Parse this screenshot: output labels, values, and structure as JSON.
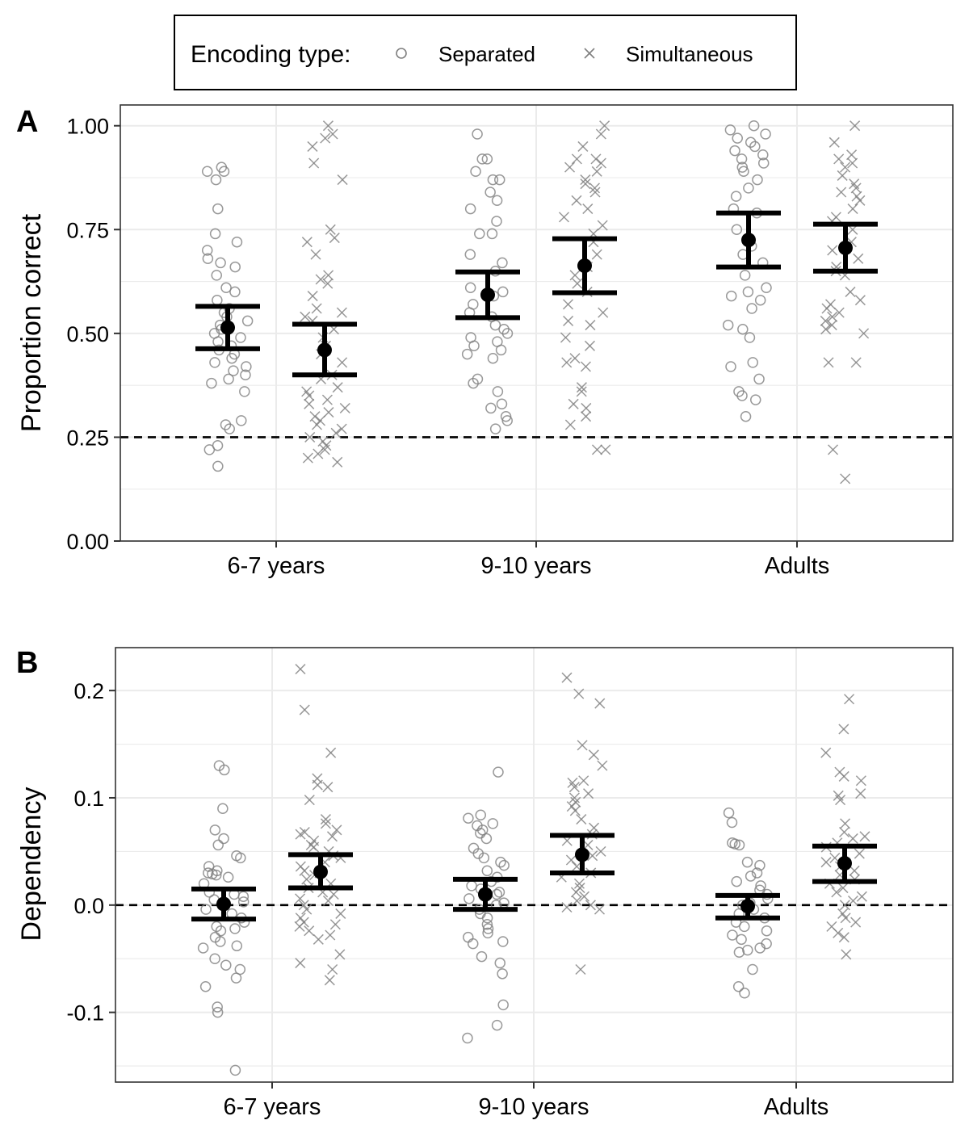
{
  "legend": {
    "title": "Encoding type:",
    "items": [
      {
        "label": "Separated",
        "shape": "circle-icon"
      },
      {
        "label": "Simultaneous",
        "shape": "cross-icon"
      }
    ]
  },
  "colors": {
    "point": "#7f7f7f",
    "summary": "#000000",
    "grid": "#ebebeb",
    "panel_border": "#333333",
    "reference_line": "#000000"
  },
  "chart_data": [
    {
      "type": "scatter",
      "panel_label": "A",
      "title": "",
      "xlabel": "",
      "ylabel": "Proportion correct",
      "categories": [
        "6-7 years",
        "9-10 years",
        "Adults"
      ],
      "ylim": [
        0,
        1.05
      ],
      "yticks": [
        0,
        0.25,
        0.5,
        0.75,
        1.0
      ],
      "ytick_labels": [
        "0.00",
        "0.25",
        "0.50",
        "0.75",
        "1.00"
      ],
      "reference_line": 0.25,
      "grid": true,
      "series": [
        {
          "name": "Separated",
          "marker": "circle",
          "points": [
            [
              0.89,
              0.89,
              0.9,
              0.87,
              0.8,
              0.74,
              0.72,
              0.7,
              0.68,
              0.67,
              0.66,
              0.64,
              0.61,
              0.6,
              0.58,
              0.56,
              0.55,
              0.54,
              0.53,
              0.52,
              0.51,
              0.5,
              0.49,
              0.48,
              0.47,
              0.46,
              0.45,
              0.44,
              0.43,
              0.42,
              0.41,
              0.4,
              0.39,
              0.38,
              0.36,
              0.29,
              0.28,
              0.27,
              0.23,
              0.22,
              0.18
            ],
            [
              0.98,
              0.92,
              0.92,
              0.89,
              0.87,
              0.87,
              0.84,
              0.82,
              0.8,
              0.77,
              0.74,
              0.74,
              0.69,
              0.67,
              0.65,
              0.61,
              0.6,
              0.59,
              0.57,
              0.55,
              0.54,
              0.52,
              0.51,
              0.5,
              0.49,
              0.48,
              0.47,
              0.46,
              0.45,
              0.44,
              0.39,
              0.38,
              0.36,
              0.33,
              0.32,
              0.3,
              0.29,
              0.27
            ],
            [
              1.0,
              0.99,
              0.98,
              0.97,
              0.96,
              0.95,
              0.94,
              0.93,
              0.92,
              0.91,
              0.9,
              0.89,
              0.87,
              0.85,
              0.83,
              0.8,
              0.79,
              0.75,
              0.71,
              0.69,
              0.67,
              0.64,
              0.61,
              0.6,
              0.59,
              0.58,
              0.56,
              0.52,
              0.51,
              0.49,
              0.43,
              0.42,
              0.39,
              0.36,
              0.35,
              0.34,
              0.3
            ]
          ],
          "mean": [
            0.514,
            0.593,
            0.725
          ],
          "ci_low": [
            0.463,
            0.538,
            0.66
          ],
          "ci_high": [
            0.565,
            0.648,
            0.79
          ]
        },
        {
          "name": "Simultaneous",
          "marker": "cross",
          "points": [
            [
              1.0,
              0.98,
              0.97,
              0.95,
              0.91,
              0.87,
              0.75,
              0.73,
              0.72,
              0.69,
              0.64,
              0.63,
              0.62,
              0.59,
              0.56,
              0.55,
              0.54,
              0.53,
              0.51,
              0.49,
              0.47,
              0.45,
              0.43,
              0.4,
              0.39,
              0.37,
              0.36,
              0.35,
              0.34,
              0.33,
              0.32,
              0.31,
              0.3,
              0.29,
              0.28,
              0.27,
              0.26,
              0.25,
              0.24,
              0.23,
              0.22,
              0.21,
              0.2,
              0.19
            ],
            [
              1.0,
              0.98,
              0.95,
              0.92,
              0.92,
              0.91,
              0.9,
              0.89,
              0.87,
              0.86,
              0.85,
              0.84,
              0.82,
              0.8,
              0.78,
              0.76,
              0.74,
              0.72,
              0.69,
              0.66,
              0.64,
              0.62,
              0.6,
              0.57,
              0.55,
              0.53,
              0.52,
              0.49,
              0.47,
              0.44,
              0.43,
              0.42,
              0.37,
              0.36,
              0.33,
              0.32,
              0.3,
              0.28,
              0.22,
              0.22
            ],
            [
              1.0,
              0.96,
              0.93,
              0.92,
              0.91,
              0.9,
              0.88,
              0.86,
              0.85,
              0.84,
              0.83,
              0.82,
              0.8,
              0.78,
              0.77,
              0.75,
              0.72,
              0.7,
              0.68,
              0.66,
              0.65,
              0.64,
              0.6,
              0.58,
              0.57,
              0.56,
              0.55,
              0.54,
              0.53,
              0.52,
              0.51,
              0.5,
              0.43,
              0.43,
              0.22,
              0.15
            ]
          ],
          "mean": [
            0.46,
            0.663,
            0.706
          ],
          "ci_low": [
            0.4,
            0.598,
            0.65
          ],
          "ci_high": [
            0.522,
            0.728,
            0.763
          ]
        }
      ]
    },
    {
      "type": "scatter",
      "panel_label": "B",
      "title": "",
      "xlabel": "",
      "ylabel": "Dependency",
      "categories": [
        "6-7 years",
        "9-10 years",
        "Adults"
      ],
      "ylim": [
        -0.165,
        0.24
      ],
      "yticks": [
        -0.1,
        0.0,
        0.1,
        0.2
      ],
      "ytick_labels": [
        "-0.1",
        "0.0",
        "0.1",
        "0.2"
      ],
      "reference_line": 0.0,
      "grid": true,
      "series": [
        {
          "name": "Separated",
          "marker": "circle",
          "points": [
            [
              0.13,
              0.126,
              0.09,
              0.07,
              0.062,
              0.056,
              0.046,
              0.044,
              0.036,
              0.032,
              0.03,
              0.029,
              0.028,
              0.026,
              0.02,
              0.012,
              0.01,
              0.008,
              0.005,
              0.003,
              0.0,
              -0.004,
              -0.008,
              -0.012,
              -0.016,
              -0.02,
              -0.022,
              -0.024,
              -0.03,
              -0.034,
              -0.038,
              -0.04,
              -0.05,
              -0.056,
              -0.06,
              -0.068,
              -0.076,
              -0.095,
              -0.1,
              -0.154
            ],
            [
              0.124,
              0.084,
              0.081,
              0.076,
              0.074,
              0.07,
              0.067,
              0.062,
              0.053,
              0.048,
              0.044,
              0.04,
              0.037,
              0.032,
              0.026,
              0.022,
              0.018,
              0.015,
              0.012,
              0.01,
              0.006,
              0.002,
              0.0,
              -0.004,
              -0.008,
              -0.012,
              -0.018,
              -0.022,
              -0.026,
              -0.03,
              -0.034,
              -0.036,
              -0.048,
              -0.054,
              -0.064,
              -0.093,
              -0.112,
              -0.124
            ],
            [
              0.086,
              0.077,
              0.058,
              0.057,
              0.056,
              0.04,
              0.037,
              0.03,
              0.027,
              0.022,
              0.018,
              0.014,
              0.01,
              0.006,
              0.002,
              0.0,
              -0.004,
              -0.008,
              -0.012,
              -0.016,
              -0.02,
              -0.024,
              -0.028,
              -0.032,
              -0.036,
              -0.04,
              -0.042,
              -0.044,
              -0.06,
              -0.076,
              -0.082
            ]
          ],
          "mean": [
            0.001,
            0.01,
            -0.001
          ],
          "ci_low": [
            -0.013,
            -0.004,
            -0.012
          ],
          "ci_high": [
            0.015,
            0.024,
            0.009
          ]
        },
        {
          "name": "Simultaneous",
          "marker": "cross",
          "points": [
            [
              0.22,
              0.182,
              0.142,
              0.118,
              0.112,
              0.11,
              0.098,
              0.08,
              0.076,
              0.07,
              0.068,
              0.066,
              0.064,
              0.06,
              0.056,
              0.054,
              0.05,
              0.046,
              0.044,
              0.04,
              0.036,
              0.032,
              0.03,
              0.028,
              0.024,
              0.02,
              0.016,
              0.012,
              0.01,
              0.006,
              0.004,
              0.0,
              -0.004,
              -0.008,
              -0.012,
              -0.016,
              -0.018,
              -0.02,
              -0.024,
              -0.028,
              -0.032,
              -0.046,
              -0.054,
              -0.06,
              -0.07
            ],
            [
              0.212,
              0.197,
              0.188,
              0.149,
              0.14,
              0.13,
              0.116,
              0.114,
              0.11,
              0.104,
              0.1,
              0.096,
              0.092,
              0.088,
              0.08,
              0.072,
              0.066,
              0.06,
              0.056,
              0.05,
              0.046,
              0.042,
              0.036,
              0.03,
              0.026,
              0.02,
              0.016,
              0.012,
              0.008,
              0.004,
              0.0,
              -0.002,
              -0.004,
              -0.06
            ],
            [
              0.192,
              0.164,
              0.142,
              0.124,
              0.12,
              0.116,
              0.104,
              0.102,
              0.098,
              0.076,
              0.068,
              0.064,
              0.062,
              0.058,
              0.054,
              0.048,
              0.044,
              0.04,
              0.036,
              0.032,
              0.028,
              0.024,
              0.02,
              0.016,
              0.012,
              0.008,
              0.004,
              0.0,
              -0.008,
              -0.012,
              -0.016,
              -0.02,
              -0.026,
              -0.03,
              -0.046
            ]
          ],
          "mean": [
            0.031,
            0.047,
            0.039
          ],
          "ci_low": [
            0.016,
            0.03,
            0.022
          ],
          "ci_high": [
            0.047,
            0.065,
            0.055
          ]
        }
      ]
    }
  ]
}
